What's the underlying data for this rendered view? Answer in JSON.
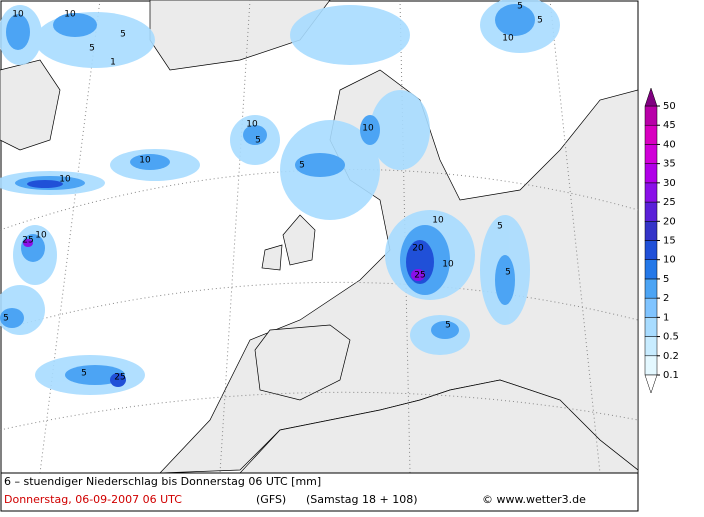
{
  "footer": {
    "title": "6 – stuendiger Niederschlag bis Donnerstag 06 UTC [mm]",
    "date": "Donnerstag, 06-09-2007  06 UTC",
    "model": "(GFS)",
    "run": "(Samstag 18 + 108)",
    "copyright": "© www.wetter3.de"
  },
  "legend": {
    "levels": [
      0.1,
      0.2,
      0.5,
      1,
      2,
      5,
      10,
      15,
      20,
      25,
      30,
      35,
      40,
      45,
      50
    ],
    "colors": [
      "#ffffff",
      "#e4f8ff",
      "#c8ecff",
      "#a8dcff",
      "#80c4ff",
      "#4ca4f4",
      "#2478e8",
      "#2050d8",
      "#3434c8",
      "#5a20d8",
      "#8a10e8",
      "#b000e8",
      "#d000d8",
      "#d800c0",
      "#b800a8",
      "#800080"
    ]
  },
  "contour_labels": [
    10,
    10,
    5,
    5,
    1,
    5,
    5,
    10,
    10,
    5,
    10,
    10,
    25,
    10,
    10,
    20,
    25,
    10,
    5,
    5,
    5,
    25,
    5,
    10,
    5,
    5
  ]
}
